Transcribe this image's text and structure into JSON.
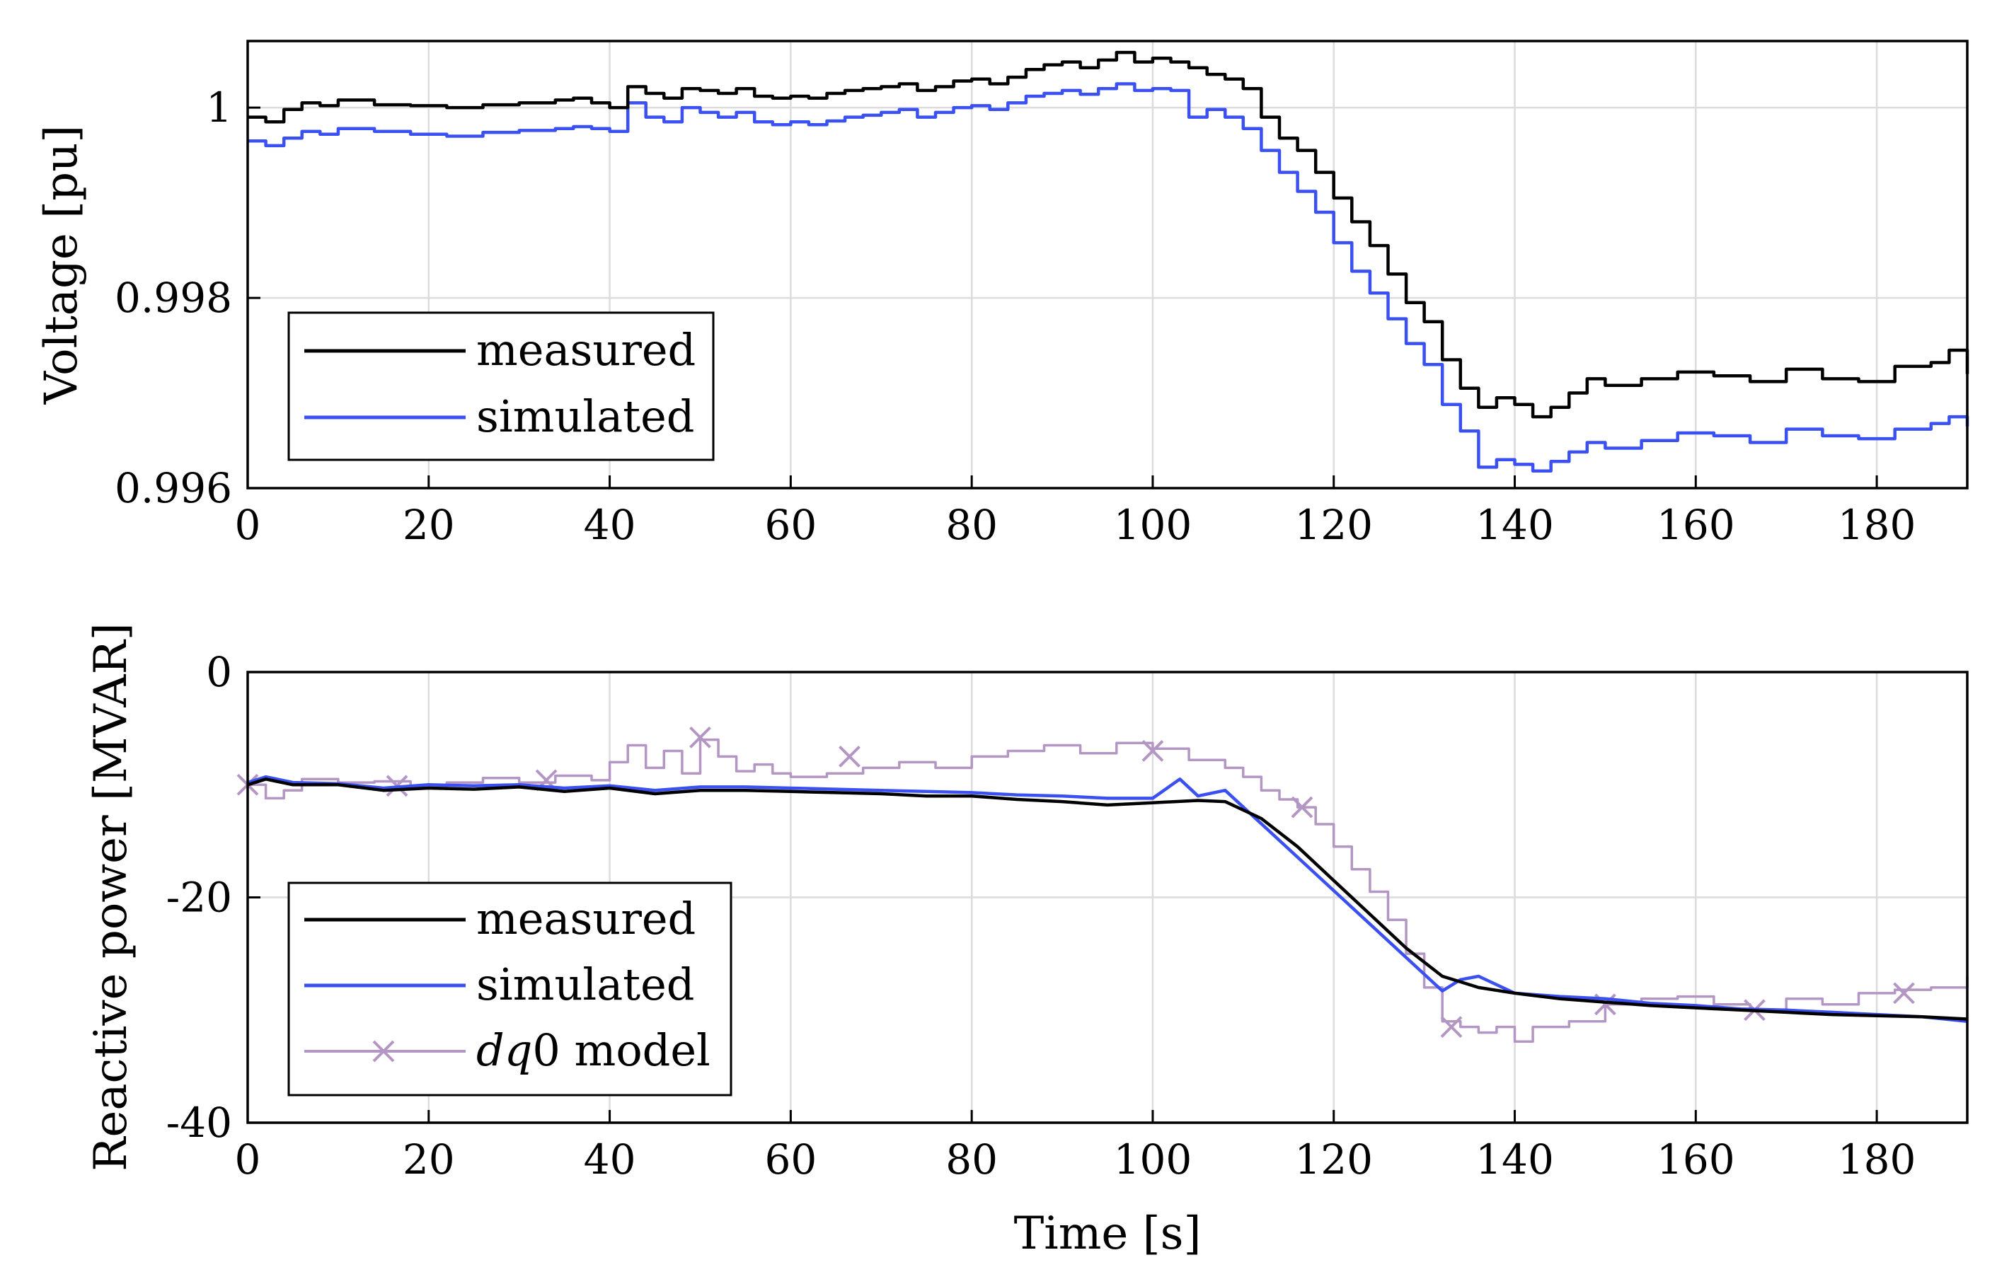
{
  "chart_data": [
    {
      "type": "line",
      "id": "voltage",
      "xlabel": "",
      "ylabel": "Voltage [pu]",
      "xlim": [
        0,
        190
      ],
      "ylim": [
        0.996,
        1.0007
      ],
      "xticks": [
        0,
        20,
        40,
        60,
        80,
        100,
        120,
        140,
        160,
        180
      ],
      "xtick_labels": [
        "0",
        "20",
        "40",
        "60",
        "80",
        "100",
        "120",
        "140",
        "160",
        "180"
      ],
      "yticks": [
        0.996,
        0.998,
        1.0
      ],
      "ytick_labels": [
        "0.996",
        "0.998",
        "1"
      ],
      "grid": true,
      "legend_position": "bottom-left",
      "series": [
        {
          "name": "measured",
          "label": "measured",
          "color": "#000000",
          "step": true,
          "x": [
            0,
            2,
            4,
            6,
            8,
            10,
            14,
            18,
            22,
            26,
            30,
            34,
            36,
            38,
            40,
            42,
            44,
            46,
            48,
            50,
            52,
            54,
            56,
            58,
            60,
            62,
            64,
            66,
            68,
            70,
            72,
            74,
            76,
            78,
            80,
            82,
            84,
            86,
            88,
            90,
            92,
            94,
            96,
            98,
            100,
            102,
            104,
            106,
            108,
            110,
            112,
            114,
            116,
            118,
            120,
            122,
            124,
            126,
            128,
            130,
            132,
            134,
            136,
            138,
            140,
            142,
            144,
            146,
            148,
            150,
            154,
            158,
            162,
            166,
            170,
            174,
            178,
            182,
            186,
            188,
            190
          ],
          "values": [
            0.9999,
            0.99985,
            0.99998,
            1.00005,
            1.00002,
            1.00008,
            1.00003,
            1.00002,
            1.0,
            1.00003,
            1.00005,
            1.00008,
            1.0001,
            1.00005,
            1.0,
            1.00022,
            1.00015,
            1.0001,
            1.0002,
            1.00018,
            1.00015,
            1.0002,
            1.00012,
            1.0001,
            1.00012,
            1.0001,
            1.00015,
            1.00018,
            1.0002,
            1.00022,
            1.00025,
            1.00018,
            1.00022,
            1.00028,
            1.0003,
            1.00025,
            1.00032,
            1.0004,
            1.00045,
            1.00048,
            1.00042,
            1.0005,
            1.00058,
            1.00048,
            1.00052,
            1.00048,
            1.00042,
            1.00035,
            1.0003,
            1.0002,
            0.9999,
            0.99968,
            0.99955,
            0.99932,
            0.99905,
            0.9988,
            0.99855,
            0.99825,
            0.99795,
            0.99775,
            0.99735,
            0.99705,
            0.99685,
            0.99695,
            0.99688,
            0.99675,
            0.99685,
            0.997,
            0.99715,
            0.99708,
            0.99715,
            0.99722,
            0.99718,
            0.99712,
            0.99725,
            0.99715,
            0.99712,
            0.99728,
            0.99732,
            0.99745,
            0.9972
          ]
        },
        {
          "name": "simulated",
          "label": "simulated",
          "color": "#3a50f0",
          "step": true,
          "x": [
            0,
            2,
            4,
            6,
            8,
            10,
            14,
            18,
            22,
            26,
            30,
            34,
            36,
            38,
            40,
            42,
            44,
            46,
            48,
            50,
            52,
            54,
            56,
            58,
            60,
            62,
            64,
            66,
            68,
            70,
            72,
            74,
            76,
            78,
            80,
            82,
            84,
            86,
            88,
            90,
            92,
            94,
            96,
            98,
            100,
            102,
            104,
            106,
            108,
            110,
            112,
            114,
            116,
            118,
            120,
            122,
            124,
            126,
            128,
            130,
            132,
            134,
            136,
            138,
            140,
            142,
            144,
            146,
            148,
            150,
            154,
            158,
            162,
            166,
            170,
            174,
            178,
            182,
            186,
            188,
            190
          ],
          "values": [
            0.99965,
            0.9996,
            0.99968,
            0.99975,
            0.99972,
            0.99978,
            0.99975,
            0.99972,
            0.9997,
            0.99974,
            0.99976,
            0.99978,
            0.9998,
            0.99978,
            0.99975,
            1.00005,
            0.9999,
            0.99985,
            1.0,
            0.99995,
            0.9999,
            0.99995,
            0.99985,
            0.99982,
            0.99985,
            0.99982,
            0.99986,
            0.9999,
            0.99992,
            0.99995,
            0.99998,
            0.9999,
            0.99995,
            1.0,
            1.00002,
            0.99998,
            1.00005,
            1.00012,
            1.00015,
            1.00018,
            1.00014,
            1.0002,
            1.00025,
            1.00018,
            1.0002,
            1.00018,
            0.9999,
            0.99998,
            0.9999,
            0.99978,
            0.99955,
            0.99932,
            0.99912,
            0.9989,
            0.99858,
            0.99828,
            0.99805,
            0.99778,
            0.99752,
            0.9973,
            0.99688,
            0.9966,
            0.99622,
            0.9963,
            0.99625,
            0.99618,
            0.99628,
            0.99638,
            0.99648,
            0.99642,
            0.9965,
            0.99658,
            0.99655,
            0.99648,
            0.99662,
            0.99655,
            0.99652,
            0.99662,
            0.99668,
            0.99675,
            0.99665
          ]
        }
      ]
    },
    {
      "type": "line",
      "id": "reactive_power",
      "xlabel": "Time [s]",
      "ylabel": "Reactive power [MVAR]",
      "xlim": [
        0,
        190
      ],
      "ylim": [
        -40,
        0
      ],
      "xticks": [
        0,
        20,
        40,
        60,
        80,
        100,
        120,
        140,
        160,
        180
      ],
      "xtick_labels": [
        "0",
        "20",
        "40",
        "60",
        "80",
        "100",
        "120",
        "140",
        "160",
        "180"
      ],
      "yticks": [
        -40,
        -20,
        0
      ],
      "ytick_labels": [
        "-40",
        "-20",
        "0"
      ],
      "grid": true,
      "legend_position": "bottom-left",
      "series": [
        {
          "name": "measured",
          "label": "measured",
          "color": "#000000",
          "marker": "none",
          "x": [
            0,
            2,
            5,
            10,
            15,
            20,
            25,
            30,
            35,
            40,
            45,
            50,
            55,
            60,
            65,
            70,
            75,
            80,
            85,
            90,
            95,
            100,
            105,
            108,
            112,
            116,
            120,
            124,
            128,
            132,
            134,
            136,
            140,
            145,
            150,
            155,
            160,
            165,
            170,
            175,
            180,
            185,
            190
          ],
          "values": [
            -10,
            -9.5,
            -10,
            -10,
            -10.5,
            -10.3,
            -10.4,
            -10.2,
            -10.6,
            -10.3,
            -10.8,
            -10.5,
            -10.5,
            -10.6,
            -10.7,
            -10.8,
            -11.0,
            -11.0,
            -11.3,
            -11.5,
            -11.8,
            -11.6,
            -11.4,
            -11.5,
            -13.0,
            -15.5,
            -18.5,
            -21.5,
            -24.5,
            -27.0,
            -27.5,
            -28.0,
            -28.5,
            -29.0,
            -29.3,
            -29.6,
            -29.8,
            -30.0,
            -30.2,
            -30.4,
            -30.5,
            -30.6,
            -30.8
          ]
        },
        {
          "name": "simulated",
          "label": "simulated",
          "color": "#3a50f0",
          "marker": "none",
          "x": [
            0,
            2,
            5,
            10,
            15,
            20,
            25,
            30,
            35,
            40,
            45,
            50,
            55,
            60,
            65,
            70,
            75,
            80,
            85,
            90,
            95,
            100,
            103,
            105,
            108,
            132,
            134,
            136,
            140,
            145,
            150,
            155,
            160,
            165,
            170,
            175,
            180,
            185,
            190
          ],
          "values": [
            -9.8,
            -9.3,
            -9.8,
            -9.9,
            -10.3,
            -10.0,
            -10.1,
            -10.0,
            -10.3,
            -10.1,
            -10.5,
            -10.2,
            -10.2,
            -10.3,
            -10.4,
            -10.5,
            -10.6,
            -10.7,
            -10.9,
            -11.0,
            -11.2,
            -11.2,
            -9.5,
            -11.0,
            -10.5,
            -28.3,
            -27.3,
            -27.0,
            -28.5,
            -28.8,
            -29.0,
            -29.4,
            -29.6,
            -29.9,
            -30.0,
            -30.2,
            -30.4,
            -30.6,
            -31.0
          ]
        },
        {
          "name": "dq0 model",
          "label_italic": "dq",
          "label_plain": "0 model",
          "color": "#b496c4",
          "step": true,
          "marker": "x",
          "x": [
            0,
            2,
            4,
            6,
            10,
            14,
            18,
            22,
            26,
            30,
            34,
            38,
            40,
            42,
            44,
            46,
            48,
            50,
            52,
            54,
            56,
            58,
            60,
            64,
            68,
            72,
            76,
            80,
            84,
            88,
            92,
            96,
            100,
            104,
            108,
            110,
            112,
            114,
            116,
            118,
            120,
            122,
            124,
            126,
            128,
            130,
            132,
            134,
            136,
            138,
            140,
            142,
            146,
            150,
            154,
            158,
            162,
            166,
            170,
            174,
            178,
            182,
            186,
            190
          ],
          "values": [
            -10.0,
            -11.2,
            -10.5,
            -9.5,
            -9.8,
            -9.7,
            -10.2,
            -9.8,
            -9.4,
            -9.8,
            -9.2,
            -9.6,
            -8.0,
            -6.5,
            -8.5,
            -7.0,
            -9.0,
            -6.0,
            -7.5,
            -8.8,
            -8.2,
            -9.0,
            -9.3,
            -9.0,
            -8.5,
            -8.0,
            -8.5,
            -7.5,
            -7.0,
            -6.5,
            -7.2,
            -6.3,
            -6.8,
            -7.8,
            -8.5,
            -9.3,
            -10.5,
            -11.3,
            -12.0,
            -13.5,
            -15.5,
            -17.5,
            -19.5,
            -22.0,
            -25.0,
            -28.0,
            -31.0,
            -31.5,
            -32.0,
            -31.5,
            -32.8,
            -31.5,
            -31.0,
            -29.5,
            -29.0,
            -28.8,
            -29.5,
            -30.0,
            -29.0,
            -29.5,
            -28.5,
            -28.2,
            -28.0,
            -27.0
          ],
          "markers_x": [
            0,
            16.5,
            33,
            50,
            66.5,
            100,
            116.5,
            133,
            150,
            166.5,
            183
          ],
          "markers_y": [
            -10.0,
            -10.1,
            -9.6,
            -5.8,
            -7.5,
            -7.0,
            -12.0,
            -31.5,
            -29.5,
            -30.0,
            -28.5
          ]
        }
      ]
    }
  ]
}
